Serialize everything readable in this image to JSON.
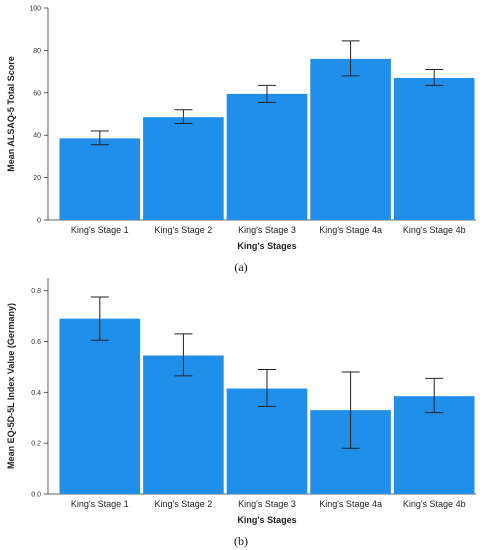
{
  "chart_data": [
    {
      "type": "bar",
      "caption": "(a)",
      "xlabel": "King's Stages",
      "ylabel": "Mean ALSAQ-5 Total Score",
      "ylim": [
        0,
        100
      ],
      "yticks": [
        0,
        20,
        40,
        60,
        80,
        100
      ],
      "categories": [
        "King's Stage 1",
        "King's Stage 2",
        "King's Stage 3",
        "King's Stage 4a",
        "King's Stage 4b"
      ],
      "values": [
        38.5,
        48.5,
        59.5,
        76.0,
        67.0
      ],
      "error_low": [
        35.5,
        45.5,
        55.5,
        68.0,
        63.5
      ],
      "error_high": [
        42.0,
        52.0,
        63.5,
        84.5,
        71.0
      ],
      "grid": false,
      "bar_color": "#1f8fea",
      "error_color": "#222222"
    },
    {
      "type": "bar",
      "caption": "(b)",
      "xlabel": "King's Stages",
      "ylabel": "Mean EQ-5D-5L Index Value (Germany)",
      "ylim": [
        0,
        0.85
      ],
      "yticks": [
        "0.0",
        "0.2",
        "0.4",
        "0.6",
        "0.8"
      ],
      "categories": [
        "King's Stage 1",
        "King's Stage 2",
        "King's Stage 3",
        "King's Stage 4a",
        "King's Stage 4b"
      ],
      "values": [
        0.69,
        0.545,
        0.415,
        0.33,
        0.385
      ],
      "error_low": [
        0.605,
        0.465,
        0.345,
        0.18,
        0.32
      ],
      "error_high": [
        0.775,
        0.63,
        0.49,
        0.48,
        0.455
      ],
      "grid": false,
      "bar_color": "#1f8fea",
      "error_color": "#222222"
    }
  ]
}
